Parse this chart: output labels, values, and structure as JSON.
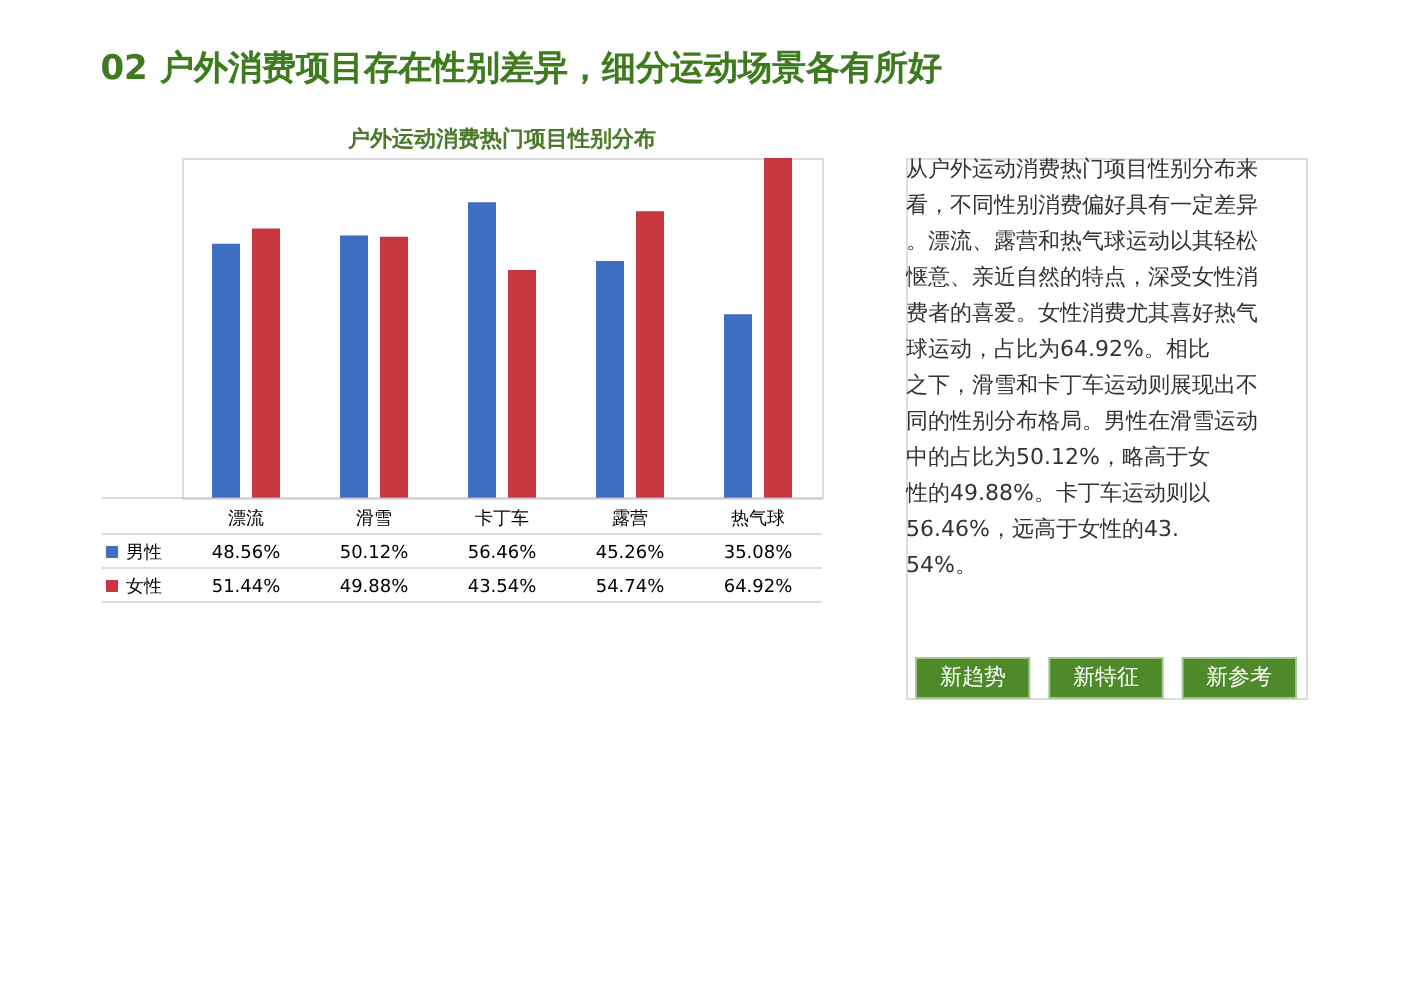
{
  "chart_data": {
    "type": "bar",
    "title": "02 户外消费项目存在性别差异，细分运动场景各有所好",
    "subtitle": "户外运动消费热门项目性别分布",
    "categories": [
      "漂流",
      "滑雪",
      "卡丁车",
      "露营",
      "热气球"
    ],
    "series": [
      {
        "name": "男性",
        "color": "#3f6fc0",
        "values": [
          48.56,
          50.12,
          56.46,
          45.26,
          35.08
        ],
        "value_labels": [
          "48.56%",
          "50.12%",
          "56.46%",
          "45.26%",
          "35.08%"
        ]
      },
      {
        "name": "女性",
        "color": "#c8373f",
        "values": [
          51.44,
          49.88,
          43.54,
          54.74,
          64.92
        ],
        "value_labels": [
          "51.44%",
          "49.88%",
          "43.54%",
          "54.74%",
          "64.92%"
        ]
      }
    ],
    "legend": "bottom",
    "grid": false,
    "annotations": [
      "从户外运动消费热门项目性别分布来看，不同性别消费偏好具有一定差异。漂流、露营和热气球运动以其轻松惬意、亲近自然的特点，深受女性消费者的喜爱。女性消费尤其喜好热气球运动，占比为64.92%。相比之下，滑雪和卡丁车运动则展现出不同的性别分布格局。男性在滑雪运动中的占比为50.12%，略高于女性的49.88%。卡丁车运动则以56.46%，远高于女性的43.54%。",
      "新趋势",
      "新特征",
      "新参考"
    ]
  }
}
